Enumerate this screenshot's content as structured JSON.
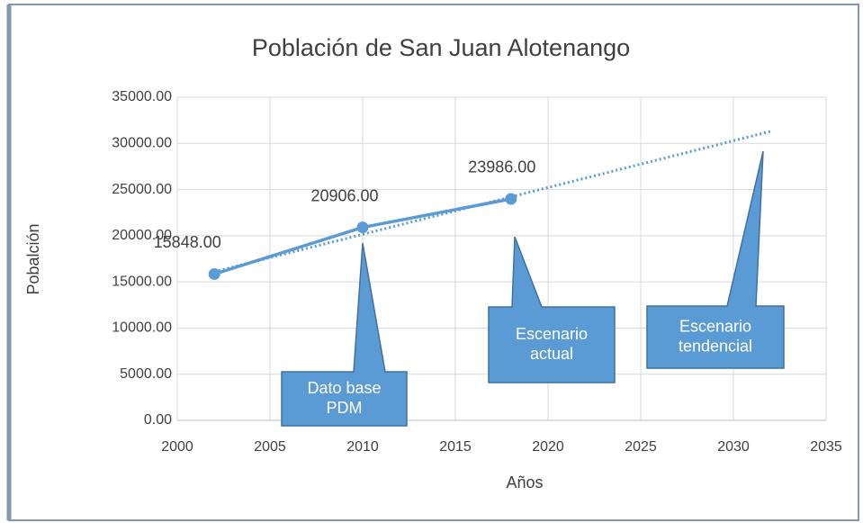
{
  "chart_data": {
    "type": "scatter",
    "title": "Población de San Juan Alotenango",
    "x_label": "Años",
    "y_label": "Pobalción",
    "series": [
      {
        "color": "#5b9bd5",
        "x": [
          2002,
          2010,
          2018
        ],
        "values": [
          15848,
          20906,
          23986
        ],
        "value_labels": [
          "15848.00",
          "20906.00",
          "23986.00"
        ]
      }
    ],
    "trendline": {
      "color": "#5b9bd5",
      "x": [
        2002,
        2032
      ],
      "values": [
        16100,
        31300
      ]
    },
    "xlim": [
      2000,
      2035
    ],
    "xticks": [
      2000,
      2005,
      2010,
      2015,
      2020,
      2025,
      2030,
      2035
    ],
    "ylim": [
      0,
      35000
    ],
    "yticks": [
      {
        "value": 0,
        "label": "0.00"
      },
      {
        "value": 5000,
        "label": "5000.00"
      },
      {
        "value": 10000,
        "label": "10000.00"
      },
      {
        "value": 15000,
        "label": "15000.00"
      },
      {
        "value": 20000,
        "label": "20000.00"
      },
      {
        "value": 25000,
        "label": "25000.00"
      },
      {
        "value": 30000,
        "label": "30000.00"
      },
      {
        "value": 35000,
        "label": "35000.00"
      }
    ],
    "grid": true,
    "annotations": [
      {
        "lines": [
          "Dato base",
          "PDM"
        ]
      },
      {
        "lines": [
          "Escenario",
          "actual"
        ]
      },
      {
        "lines": [
          "Escenario",
          "tendencial"
        ]
      }
    ]
  }
}
